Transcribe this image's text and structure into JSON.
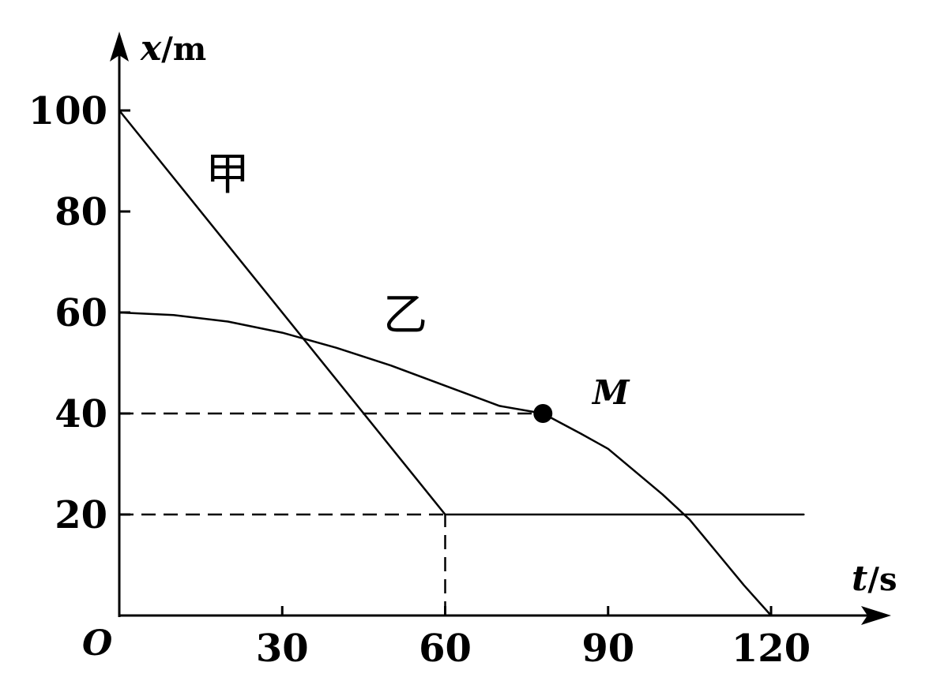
{
  "chart_data": {
    "type": "line",
    "xlabel_var": "t",
    "xlabel_unit": "/s",
    "ylabel_var": "x",
    "ylabel_unit": "/m",
    "origin_label": "O",
    "x_ticks": [
      30,
      60,
      90,
      120
    ],
    "y_ticks": [
      20,
      40,
      60,
      80,
      100
    ],
    "xlim": [
      0,
      140
    ],
    "ylim": [
      0,
      110
    ],
    "grid": false,
    "series": [
      {
        "name": "甲",
        "points": [
          [
            0,
            100
          ],
          [
            60,
            20
          ],
          [
            126,
            20
          ]
        ]
      },
      {
        "name": "乙",
        "points": [
          [
            0,
            60
          ],
          [
            10,
            59.5
          ],
          [
            20,
            58.2
          ],
          [
            30,
            56
          ],
          [
            40,
            53
          ],
          [
            50,
            49.5
          ],
          [
            60,
            45.5
          ],
          [
            70,
            41.5
          ],
          [
            78,
            40
          ],
          [
            85,
            36
          ],
          [
            90,
            33
          ],
          [
            95,
            28.5
          ],
          [
            100,
            24
          ],
          [
            105,
            19
          ],
          [
            110,
            12.5
          ],
          [
            115,
            6
          ],
          [
            120,
            0
          ]
        ]
      }
    ],
    "reference_lines": [
      {
        "type": "h",
        "y": 40,
        "x_from": 0,
        "x_to": 78
      },
      {
        "type": "h",
        "y": 20,
        "x_from": 0,
        "x_to": 60
      },
      {
        "type": "v",
        "x": 60,
        "y_from": 0,
        "y_to": 20
      }
    ],
    "point": {
      "label": "M",
      "x": 78,
      "y": 40
    }
  }
}
